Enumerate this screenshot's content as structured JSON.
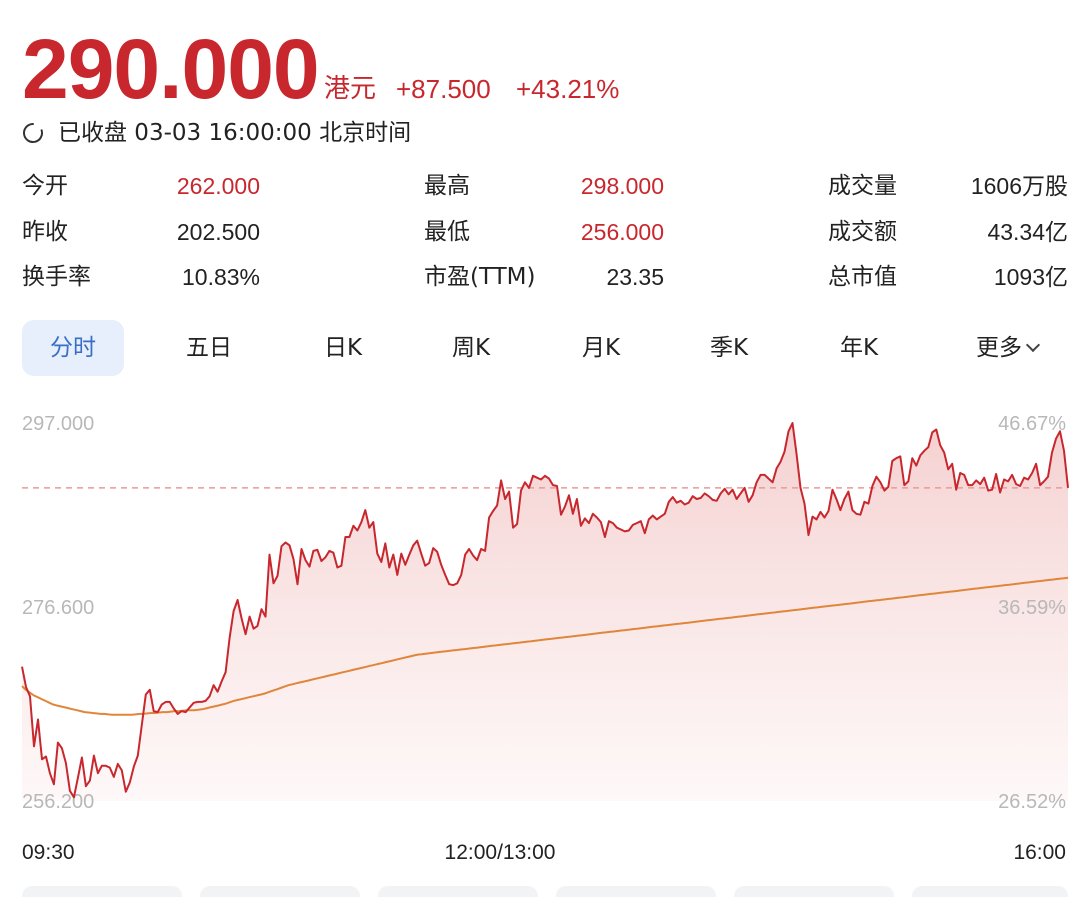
{
  "quote": {
    "price": "290.000",
    "unit": "港元",
    "change": "+87.500",
    "change_pct": "+43.21%",
    "status_icon": "clock-icon",
    "status": "已收盘 03-03 16:00:00 北京时间",
    "up_color": "#c8272d"
  },
  "stats": {
    "open_label": "今开",
    "open_value": "262.000",
    "high_label": "最高",
    "high_value": "298.000",
    "volume_label": "成交量",
    "volume_value": "1606万股",
    "prev_close_label": "昨收",
    "prev_close_value": "202.500",
    "low_label": "最低",
    "low_value": "256.000",
    "turnover_label": "成交额",
    "turnover_value": "43.34亿",
    "turnover_rate_label": "换手率",
    "turnover_rate_value": "10.83%",
    "pe_label": "市盈(TTM)",
    "pe_value": "23.35",
    "market_cap_label": "总市值",
    "market_cap_value": "1093亿"
  },
  "tabs": [
    "分时",
    "五日",
    "日K",
    "周K",
    "月K",
    "季K",
    "年K",
    "更多"
  ],
  "active_tab": "分时",
  "more_icon": "chevron-down-icon",
  "chart_data": {
    "type": "line",
    "title": "",
    "y_left_ticks": [
      "297.000",
      "276.600",
      "256.200"
    ],
    "y_right_ticks": [
      "46.67%",
      "36.59%",
      "26.52%"
    ],
    "x_ticks": [
      "09:30",
      "12:00/13:00",
      "16:00"
    ],
    "ylim": [
      256.2,
      297.0
    ],
    "reference_line": 290.0,
    "grid": false,
    "colors": {
      "price": "#c8272d",
      "average": "#e0863b",
      "area": "#f6dada",
      "reference": "#e79a9a"
    },
    "series": [
      {
        "role": "price",
        "values": [
          270.7,
          268.5,
          267.5,
          262.1,
          265.0,
          260.7,
          261.0,
          259.2,
          258.0,
          262.5,
          261.9,
          260.3,
          257.3,
          256.6,
          258.7,
          260.9,
          257.8,
          258.4,
          261.1,
          259.2,
          260.0,
          260.0,
          259.8,
          258.8,
          260.2,
          259.5,
          257.2,
          258.2,
          259.9,
          261.1,
          264.4,
          267.7,
          268.2,
          265.9,
          265.8,
          266.6,
          266.9,
          266.9,
          266.2,
          265.6,
          265.9,
          265.8,
          266.3,
          266.8,
          266.9,
          266.9,
          267.0,
          267.5,
          268.7,
          268.0,
          269.1,
          270.1,
          273.8,
          276.7,
          277.9,
          275.9,
          274.2,
          276.1,
          274.8,
          275.1,
          276.9,
          276.1,
          282.8,
          279.7,
          280.5,
          283.7,
          284.1,
          283.8,
          282.3,
          279.6,
          283.4,
          282.2,
          281.5,
          283.2,
          283.3,
          282.1,
          282.5,
          283.2,
          283.0,
          281.4,
          281.6,
          284.7,
          284.7,
          285.9,
          285.4,
          286.3,
          287.6,
          285.7,
          286.3,
          282.9,
          282.0,
          284.0,
          281.4,
          282.8,
          280.6,
          282.9,
          281.7,
          282.8,
          283.8,
          284.3,
          282.9,
          281.6,
          281.9,
          283.5,
          283.1,
          281.7,
          280.6,
          279.6,
          279.5,
          279.7,
          280.6,
          282.8,
          283.4,
          282.7,
          282.2,
          283.4,
          283.2,
          286.8,
          287.5,
          288.1,
          290.8,
          288.8,
          289.6,
          285.7,
          286.1,
          289.7,
          290.6,
          290.0,
          291.3,
          291.1,
          290.9,
          291.3,
          291.0,
          290.3,
          290.2,
          287.1,
          288.0,
          289.2,
          287.2,
          288.8,
          285.9,
          286.7,
          286.2,
          287.2,
          286.8,
          286.3,
          284.7,
          286.4,
          286.2,
          285.7,
          285.5,
          285.3,
          285.4,
          286.0,
          286.2,
          286.4,
          285.1,
          286.6,
          287.0,
          286.6,
          286.9,
          287.2,
          288.5,
          289.0,
          288.4,
          288.6,
          288.2,
          288.4,
          289.1,
          288.8,
          288.9,
          289.4,
          289.1,
          288.7,
          288.6,
          289.4,
          289.9,
          289.3,
          289.8,
          288.8,
          289.4,
          290.0,
          288.5,
          289.2,
          290.6,
          291.4,
          291.4,
          291.0,
          290.6,
          292.1,
          292.8,
          293.9,
          296.1,
          297.0,
          293.7,
          290.0,
          288.3,
          284.9,
          286.9,
          286.6,
          287.4,
          286.8,
          287.5,
          289.8,
          288.8,
          287.6,
          288.8,
          289.6,
          287.6,
          287.2,
          287.1,
          288.5,
          288.3,
          290.2,
          291.2,
          290.6,
          289.7,
          290.1,
          292.9,
          293.2,
          293.4,
          290.3,
          290.7,
          293.2,
          292.4,
          293.5,
          294.0,
          294.4,
          296.0,
          296.3,
          294.6,
          293.8,
          292.0,
          292.6,
          289.8,
          291.6,
          291.4,
          290.3,
          290.3,
          290.8,
          290.4,
          291.1,
          289.7,
          289.8,
          291.5,
          289.5,
          290.9,
          290.7,
          291.4,
          290.4,
          290.2,
          291.1,
          290.9,
          291.6,
          292.6,
          290.3,
          290.7,
          291.2,
          293.8,
          295.3,
          296.1,
          294.0,
          290.0
        ]
      },
      {
        "role": "average",
        "values": [
          268.6,
          268.2,
          267.9,
          267.6,
          267.4,
          267.2,
          267.0,
          266.8,
          266.6,
          266.5,
          266.4,
          266.3,
          266.2,
          266.1,
          266.0,
          265.9,
          265.8,
          265.75,
          265.7,
          265.65,
          265.6,
          265.6,
          265.55,
          265.5,
          265.5,
          265.5,
          265.5,
          265.5,
          265.5,
          265.55,
          265.6,
          265.6,
          265.65,
          265.7,
          265.7,
          265.75,
          265.8,
          265.8,
          265.85,
          265.9,
          265.9,
          265.95,
          266.0,
          266.0,
          266.0,
          266.05,
          266.1,
          266.2,
          266.3,
          266.4,
          266.5,
          266.6,
          266.7,
          266.85,
          267.0,
          267.1,
          267.2,
          267.3,
          267.4,
          267.5,
          267.6,
          267.7,
          267.8,
          267.95,
          268.1,
          268.25,
          268.4,
          268.55,
          268.7,
          268.8,
          268.9,
          269.0,
          269.1,
          269.2,
          269.3,
          269.4,
          269.5,
          269.6,
          269.7,
          269.8,
          269.9,
          270.0,
          270.1,
          270.2,
          270.3,
          270.4,
          270.5,
          270.6,
          270.7,
          270.8,
          270.9,
          271.0,
          271.1,
          271.2,
          271.3,
          271.4,
          271.5,
          271.6,
          271.7,
          271.8,
          271.9,
          272.0,
          272.05,
          272.1,
          272.15,
          272.2,
          272.25,
          272.3,
          272.35,
          272.4,
          272.45,
          272.5,
          272.55,
          272.6,
          272.65,
          272.7,
          272.75,
          272.8,
          272.85,
          272.9,
          272.95,
          273.0,
          273.05,
          273.1,
          273.15,
          273.2,
          273.25,
          273.3,
          273.35,
          273.4,
          273.45,
          273.5,
          273.55,
          273.6,
          273.65,
          273.7,
          273.75,
          273.8,
          273.85,
          273.9,
          273.95,
          274.0,
          274.05,
          274.1,
          274.15,
          274.2,
          274.25,
          274.3,
          274.35,
          274.4,
          274.45,
          274.5,
          274.55,
          274.6,
          274.65,
          274.7,
          274.75,
          274.8,
          274.85,
          274.9,
          274.95,
          275.0,
          275.05,
          275.1,
          275.15,
          275.2,
          275.25,
          275.3,
          275.35,
          275.4,
          275.45,
          275.5,
          275.55,
          275.6,
          275.65,
          275.7,
          275.75,
          275.8,
          275.85,
          275.9,
          275.95,
          276.0,
          276.05,
          276.1,
          276.15,
          276.2,
          276.25,
          276.3,
          276.35,
          276.4,
          276.45,
          276.5,
          276.55,
          276.6,
          276.65,
          276.7,
          276.75,
          276.8,
          276.85,
          276.9,
          276.95,
          277.0,
          277.05,
          277.1,
          277.15,
          277.2,
          277.25,
          277.3,
          277.35,
          277.4,
          277.45,
          277.5,
          277.55,
          277.6,
          277.65,
          277.7,
          277.75,
          277.8,
          277.85,
          277.9,
          277.95,
          278.0,
          278.05,
          278.1,
          278.15,
          278.2,
          278.25,
          278.3,
          278.35,
          278.4,
          278.45,
          278.5,
          278.55,
          278.6,
          278.65,
          278.7,
          278.75,
          278.8,
          278.85,
          278.9,
          278.95,
          279.0,
          279.05,
          279.1,
          279.15,
          279.2,
          279.25,
          279.3,
          279.35,
          279.4,
          279.45,
          279.5,
          279.55,
          279.6,
          279.65,
          279.7,
          279.75,
          279.8,
          279.85,
          279.9,
          279.95,
          280.0,
          280.05,
          280.1,
          280.15,
          280.2,
          280.25,
          280.3
        ]
      }
    ]
  }
}
